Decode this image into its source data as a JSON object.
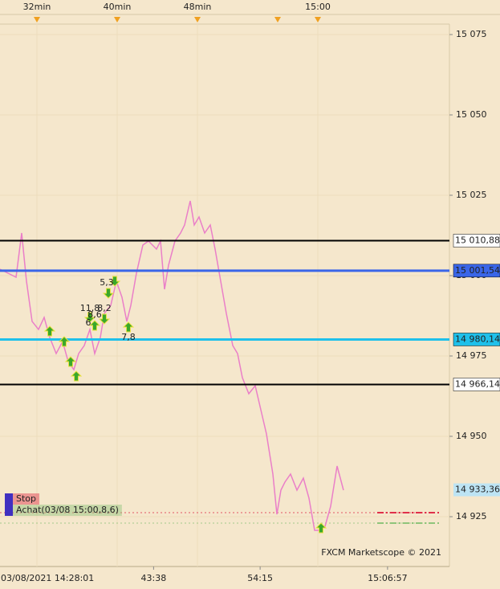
{
  "chart_data": {
    "type": "line",
    "watermark": "FXCM Marketscope © 2021",
    "background": "#f5e7cc",
    "xlim": [
      28.32,
      73.12
    ],
    "ylim": [
      14909.5,
      15078.25
    ],
    "yticks": [
      {
        "value": 14925,
        "label": "14 925"
      },
      {
        "value": 14950,
        "label": "14 950"
      },
      {
        "value": 14975,
        "label": "14 975"
      },
      {
        "value": 15000,
        "label": "15 000"
      },
      {
        "value": 15025,
        "label": "15 025"
      },
      {
        "value": 15050,
        "label": "15 050"
      },
      {
        "value": 15075,
        "label": "15 075"
      }
    ],
    "top_xticks": [
      {
        "value": 32,
        "label": "32min"
      },
      {
        "value": 40,
        "label": "40min"
      },
      {
        "value": 48,
        "label": "48min"
      },
      {
        "value": 60,
        "label": "15:00"
      }
    ],
    "event_markers": [
      32,
      40,
      48,
      56,
      60
    ],
    "xticks": [
      {
        "value": 28.02,
        "label": "03/08/2021 14:28:01"
      },
      {
        "value": 43.63,
        "label": "43:38"
      },
      {
        "value": 54.25,
        "label": "54:15"
      },
      {
        "value": 66.95,
        "label": "15:06:57"
      }
    ],
    "x": [
      28.32,
      29.12,
      29.92,
      30.48,
      30.96,
      31.52,
      32.16,
      32.72,
      33.28,
      33.92,
      34.56,
      35.12,
      35.68,
      36.16,
      36.72,
      37.28,
      37.76,
      38.32,
      38.72,
      39.36,
      39.92,
      40.48,
      40.96,
      41.36,
      41.92,
      42.56,
      43.12,
      43.92,
      44.32,
      44.72,
      45.12,
      45.76,
      46.32,
      46.72,
      47.28,
      47.68,
      48.16,
      48.72,
      49.28,
      49.76,
      50.32,
      50.88,
      51.52,
      52.0,
      52.48,
      53.12,
      53.76,
      54.32,
      54.88,
      55.52,
      55.92,
      56.32,
      56.72,
      57.28,
      57.92,
      58.56,
      59.12,
      59.68,
      60.16,
      60.72,
      61.28,
      61.92,
      62.56
    ],
    "series": [
      {
        "color": "#ea7fc8",
        "values": [
          15002,
          15000.75,
          14999.5,
          15013.25,
          14998.25,
          14985.75,
          14983.25,
          14987,
          14980.75,
          14975.75,
          14979.5,
          14973.25,
          14970.75,
          14975.75,
          14978.25,
          14983.25,
          14975.75,
          14980.75,
          14988.25,
          14990.75,
          14998.25,
          14993.25,
          14985.75,
          14990.75,
          15000.75,
          15009.5,
          15010.75,
          15008.25,
          15010.75,
          14995.75,
          15003.25,
          15010.75,
          15013.25,
          15015.75,
          15023.25,
          15015.75,
          15018.25,
          15013.25,
          15015.75,
          15008.25,
          14998.25,
          14988.25,
          14978.25,
          14975.75,
          14968.25,
          14963.25,
          14965.75,
          14958.25,
          14950.75,
          14938.25,
          14925.75,
          14933.25,
          14935.75,
          14938.25,
          14933.25,
          14937,
          14930.75,
          14920.75,
          14920.75,
          14922,
          14928.25,
          14940.75,
          14933.25
        ]
      }
    ],
    "levels": [
      {
        "value": 15010.88,
        "label": "15 010,88",
        "color": "#000000"
      },
      {
        "value": 15001.54,
        "label": "15 001,54",
        "color": "#3a66e8"
      },
      {
        "value": 14980.14,
        "label": "14 980,14",
        "color": "#1fc0ea"
      },
      {
        "value": 14966.14,
        "label": "14 966,14",
        "color": "#000000"
      }
    ],
    "last_price": {
      "value": 14933.36,
      "label": "14 933,36"
    },
    "signals": [
      {
        "x": 33.28,
        "y": 14982.75,
        "direction": "up"
      },
      {
        "x": 34.72,
        "y": 14979.5,
        "direction": "up"
      },
      {
        "x": 35.36,
        "y": 14973.25,
        "direction": "up"
      },
      {
        "x": 35.92,
        "y": 14968.75,
        "direction": "up"
      },
      {
        "x": 37.76,
        "y": 14984.5,
        "direction": "up"
      },
      {
        "x": 41.12,
        "y": 14984,
        "direction": "up"
      },
      {
        "x": 60.32,
        "y": 14921.5,
        "direction": "up"
      },
      {
        "x": 39.76,
        "y": 14998.25,
        "direction": "down"
      },
      {
        "x": 39.12,
        "y": 14994.5,
        "direction": "down"
      },
      {
        "x": 37.28,
        "y": 14987,
        "direction": "down"
      },
      {
        "x": 38.72,
        "y": 14986.5,
        "direction": "down"
      }
    ],
    "signal_labels": [
      {
        "text": "5,3",
        "x": 38.96,
        "y": 14997.75
      },
      {
        "text": "11,8",
        "x": 37.28,
        "y": 14989.75
      },
      {
        "text": "8,2",
        "x": 38.72,
        "y": 14989.75
      },
      {
        "text": "8,6",
        "x": 37.76,
        "y": 14987.75
      },
      {
        "text": "6",
        "x": 37.12,
        "y": 14985.25
      },
      {
        "text": "7,8",
        "x": 41.12,
        "y": 14980.75
      }
    ],
    "orders": [
      {
        "name": "Stop",
        "color": "#e0304a",
        "price": 14926.25
      },
      {
        "name": "Achat(03/08 15:00,8,6)",
        "color": "#8fc47a",
        "price": 14923
      }
    ]
  }
}
